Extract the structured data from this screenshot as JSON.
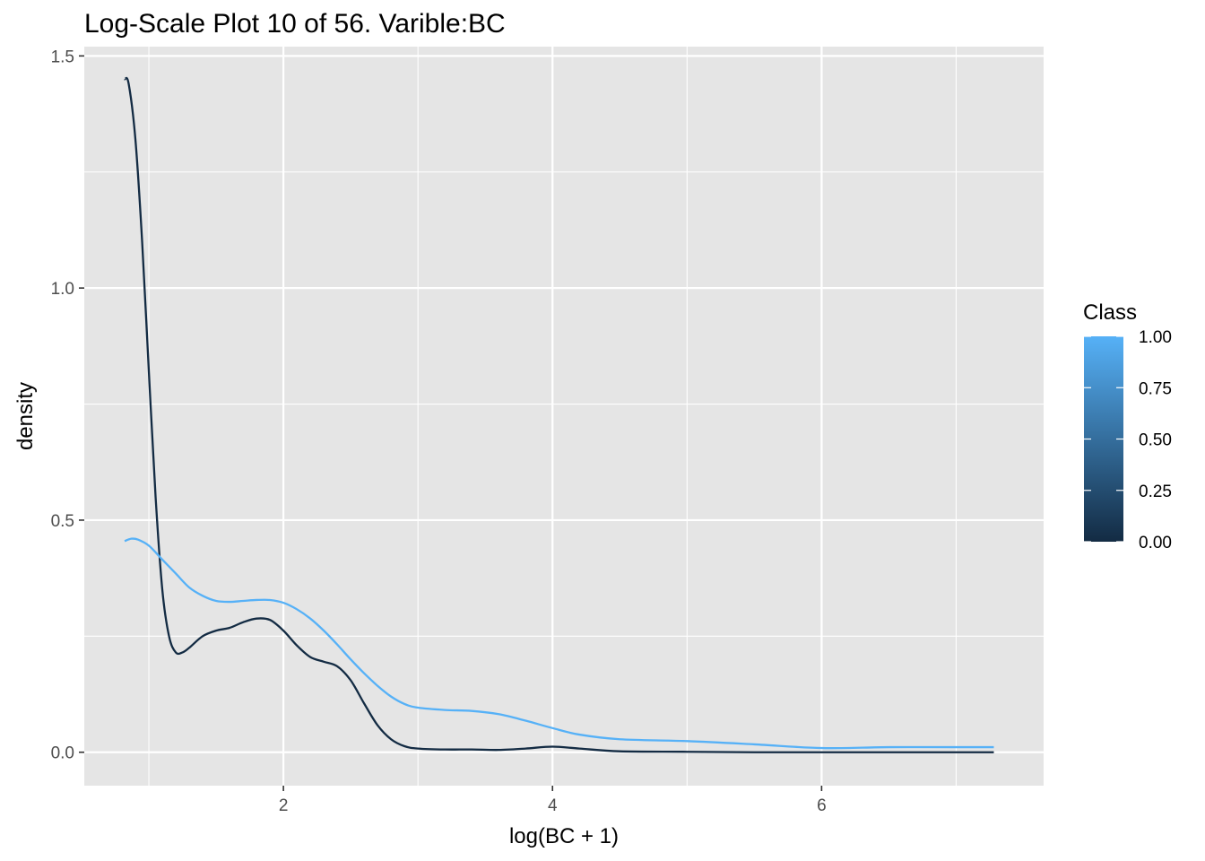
{
  "title": "Log-Scale Plot 10 of 56. Varible:BC",
  "chart_data": {
    "type": "line",
    "title": "Log-Scale Plot 10 of 56. Varible:BC",
    "xlabel": "log(BC + 1)",
    "ylabel": "density",
    "xlim": [
      0.52,
      7.65
    ],
    "ylim": [
      -0.072,
      1.52
    ],
    "x_ticks": [
      2,
      4,
      6
    ],
    "x_minor_ticks": [
      1,
      3,
      5,
      7
    ],
    "y_ticks": [
      0.0,
      0.5,
      1.0,
      1.5
    ],
    "y_tick_labels": [
      "0.0",
      "0.5",
      "1.0",
      "1.5"
    ],
    "y_minor_ticks": [
      0.25,
      0.75,
      1.25
    ],
    "grid": true,
    "background": "#e5e5e5",
    "legend": {
      "title": "Class",
      "type": "colorbar",
      "position": "right",
      "low_color": "#132b43",
      "high_color": "#56b1f7",
      "ticks": [
        0.0,
        0.25,
        0.5,
        0.75,
        1.0
      ],
      "tick_labels": [
        "0.00",
        "0.25",
        "0.50",
        "0.75",
        "1.00"
      ]
    },
    "series": [
      {
        "class_value": 0,
        "color": "#132b43",
        "x": [
          0.82,
          0.85,
          0.9,
          0.95,
          1.0,
          1.05,
          1.1,
          1.15,
          1.2,
          1.25,
          1.3,
          1.4,
          1.5,
          1.6,
          1.7,
          1.8,
          1.9,
          2.0,
          2.1,
          2.2,
          2.3,
          2.4,
          2.5,
          2.6,
          2.7,
          2.8,
          2.9,
          3.0,
          3.2,
          3.4,
          3.6,
          3.8,
          4.0,
          4.2,
          4.5,
          5.0,
          5.5,
          6.0,
          6.5,
          7.0,
          7.28
        ],
        "y": [
          1.45,
          1.44,
          1.32,
          1.1,
          0.82,
          0.55,
          0.35,
          0.25,
          0.215,
          0.215,
          0.225,
          0.25,
          0.262,
          0.268,
          0.28,
          0.288,
          0.285,
          0.262,
          0.23,
          0.205,
          0.195,
          0.185,
          0.155,
          0.105,
          0.058,
          0.028,
          0.013,
          0.008,
          0.006,
          0.006,
          0.005,
          0.008,
          0.012,
          0.008,
          0.002,
          0.001,
          0.0,
          0.0,
          0.0,
          0.0,
          0.0
        ]
      },
      {
        "class_value": 1,
        "color": "#56b1f7",
        "x": [
          0.82,
          0.87,
          0.92,
          1.0,
          1.1,
          1.2,
          1.3,
          1.4,
          1.5,
          1.6,
          1.7,
          1.8,
          1.9,
          2.0,
          2.1,
          2.2,
          2.3,
          2.4,
          2.5,
          2.6,
          2.7,
          2.8,
          2.9,
          3.0,
          3.2,
          3.4,
          3.6,
          3.8,
          4.0,
          4.2,
          4.5,
          5.0,
          5.5,
          6.0,
          6.5,
          7.0,
          7.28
        ],
        "y": [
          0.455,
          0.46,
          0.458,
          0.445,
          0.415,
          0.385,
          0.355,
          0.337,
          0.326,
          0.324,
          0.326,
          0.328,
          0.328,
          0.322,
          0.308,
          0.288,
          0.262,
          0.232,
          0.2,
          0.17,
          0.143,
          0.12,
          0.104,
          0.096,
          0.091,
          0.089,
          0.082,
          0.068,
          0.052,
          0.038,
          0.028,
          0.024,
          0.017,
          0.009,
          0.011,
          0.011,
          0.011
        ]
      }
    ]
  }
}
